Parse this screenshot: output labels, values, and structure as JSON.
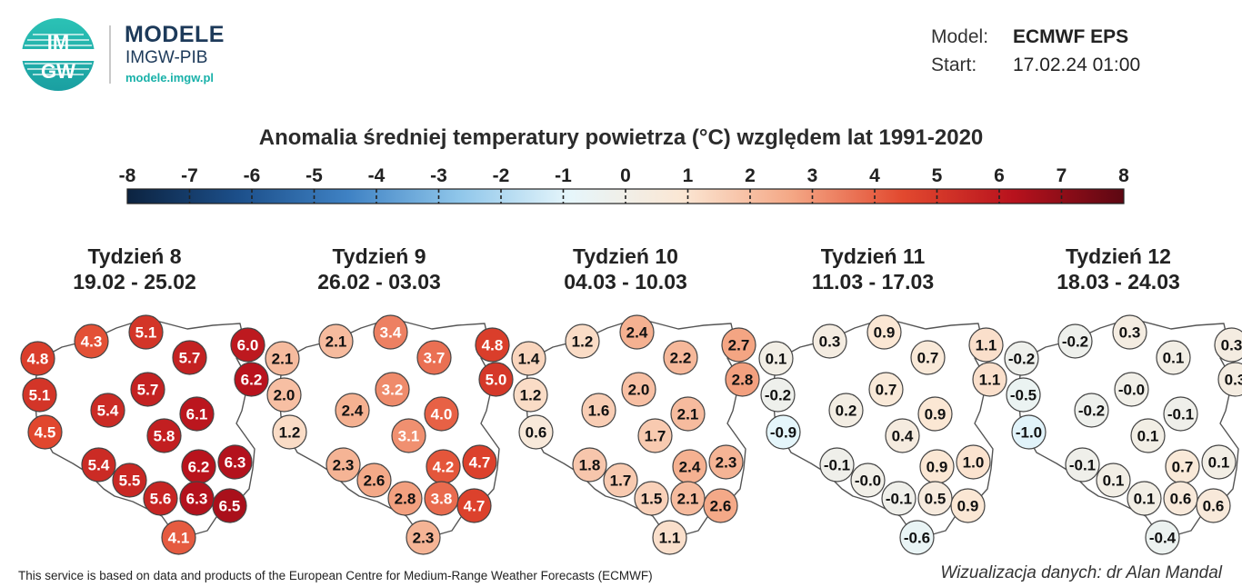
{
  "brand": {
    "logo_text_top": "IM",
    "logo_text_bottom": "GW",
    "title": "MODELE",
    "subtitle": "IMGW-PIB",
    "url": "modele.imgw.pl"
  },
  "meta": {
    "model_label": "Model:",
    "model_value": "ECMWF EPS",
    "start_label": "Start:",
    "start_value": "17.02.24 01:00"
  },
  "title": "Anomalia średniej temperatury powietrza (°C) względem lat 1991-2020",
  "colorbar": {
    "ticks": [
      "-8",
      "-7",
      "-6",
      "-5",
      "-4",
      "-3",
      "-2",
      "-1",
      "0",
      "1",
      "2",
      "3",
      "4",
      "5",
      "6",
      "7",
      "8"
    ],
    "range": [
      -8,
      8
    ],
    "colors": [
      "#0c2340",
      "#1c4f8a",
      "#3f82c4",
      "#8fc6ea",
      "#e6f6fb",
      "#fbe7d4",
      "#f4a785",
      "#e2492f",
      "#b8121d",
      "#5c0712"
    ]
  },
  "panels": [
    {
      "week": "Tydzień 8",
      "dates": "19.02 - 25.02",
      "values": [
        "4.8",
        "4.3",
        "5.1",
        "5.7",
        "6.0",
        "6.2",
        "5.1",
        "5.4",
        "5.7",
        "6.1",
        "4.5",
        "5.8",
        "6.2",
        "6.3",
        "5.4",
        "5.5",
        "5.6",
        "6.3",
        "6.5",
        "4.1"
      ]
    },
    {
      "week": "Tydzień 9",
      "dates": "26.02 - 03.03",
      "values": [
        "2.1",
        "2.1",
        "3.4",
        "3.7",
        "4.8",
        "5.0",
        "2.0",
        "2.4",
        "3.2",
        "4.0",
        "1.2",
        "3.1",
        "4.2",
        "4.7",
        "2.3",
        "2.6",
        "2.8",
        "3.8",
        "4.7",
        "2.3"
      ]
    },
    {
      "week": "Tydzień 10",
      "dates": "04.03 - 10.03",
      "values": [
        "1.4",
        "1.2",
        "2.4",
        "2.2",
        "2.7",
        "2.8",
        "1.2",
        "1.6",
        "2.0",
        "2.1",
        "0.6",
        "1.7",
        "2.4",
        "2.3",
        "1.8",
        "1.7",
        "1.5",
        "2.1",
        "2.6",
        "1.1"
      ]
    },
    {
      "week": "Tydzień 11",
      "dates": "11.03 - 17.03",
      "values": [
        "0.1",
        "0.3",
        "0.9",
        "0.7",
        "1.1",
        "1.1",
        "-0.2",
        "0.2",
        "0.7",
        "0.9",
        "-0.9",
        "0.4",
        "0.9",
        "1.0",
        "-0.1",
        "-0.0",
        "-0.1",
        "0.5",
        "0.9",
        "-0.6"
      ]
    },
    {
      "week": "Tydzień 12",
      "dates": "18.03 - 24.03",
      "values": [
        "-0.2",
        "-0.2",
        "0.3",
        "0.1",
        "0.3",
        "0.3",
        "-0.5",
        "-0.2",
        "-0.0",
        "-0.1",
        "-1.0",
        "0.1",
        "0.7",
        "0.1",
        "-0.1",
        "0.1",
        "0.1",
        "0.6",
        "0.6",
        "-0.4"
      ]
    }
  ],
  "footer": {
    "note": "This service is based on data and products of the European Centre for Medium-Range Weather Forecasts (ECMWF)",
    "credit": "Wizualizacja danych: dr Alan Mandal"
  }
}
